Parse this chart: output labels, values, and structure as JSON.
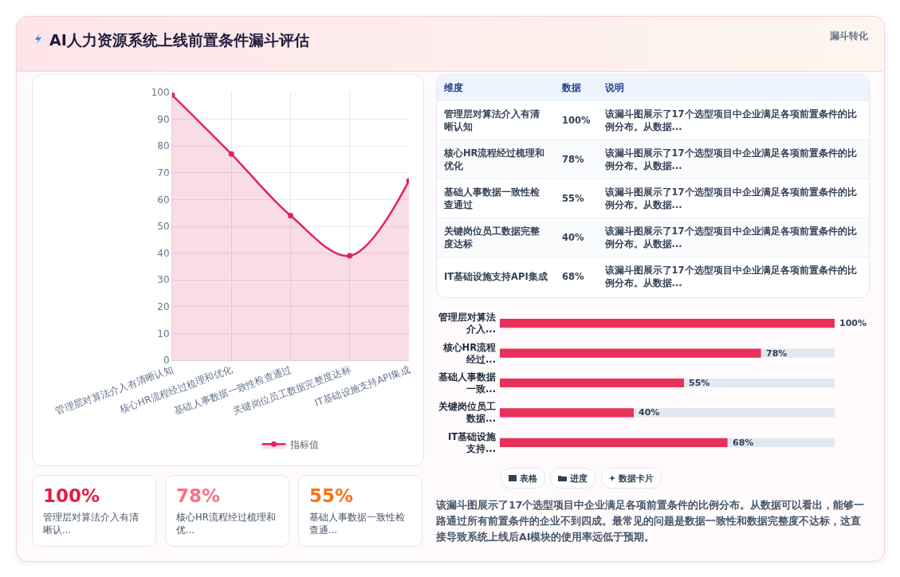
{
  "chart_data": [
    {
      "type": "area",
      "title": "AI人力资源系统上线前置条件漏斗评估",
      "annotations": [
        "漏斗转化"
      ],
      "categories": [
        "管理层对算法介入有清晰认知",
        "核心HR流程经过梳理和优化",
        "基础人事数据一致性检查通过",
        "关键岗位员工数据完整度达标",
        "IT基础设施支持API集成"
      ],
      "series": [
        {
          "name": "指标值",
          "color": "#e0245e",
          "values": [
            99,
            77,
            54,
            39,
            67
          ]
        }
      ],
      "ylim": [
        0,
        100
      ],
      "yticks": [
        0,
        10,
        20,
        30,
        40,
        50,
        60,
        70,
        80,
        90,
        100
      ],
      "grid": true,
      "legend": "bottom",
      "marker": "circle",
      "line_style": "solid"
    },
    {
      "type": "other",
      "annotations": [
        "维度",
        "数据",
        "说明",
        "管理层对算法介入有清晰认知",
        "100%",
        "该漏斗图展示了17个选型项目中企业满足各项前置条件的比例分布。从数据...",
        "核心HR流程经过梳理和优化",
        "78%",
        "该漏斗图展示了17个选型项目中企业满足各项前置条件的比例分布。从数据...",
        "基础人事数据一致性检查通过",
        "55%",
        "该漏斗图展示了17个选型项目中企业满足各项前置条件的比例分布。从数据...",
        "关键岗位员工数据完整度达标",
        "40%",
        "该漏斗图展示了17个选型项目中企业满足各项前置条件的比例分布。从数据...",
        "IT基础设施支持API集成",
        "68%",
        "该漏斗图展示了17个选型项目中企业满足各项前置条件的比例分布。从数据..."
      ]
    },
    {
      "type": "bar",
      "orientation": "horizontal",
      "categories": [
        "管理层对算法介入...",
        "核心HR流程经过...",
        "基础人事数据一致...",
        "关键岗位员工数据...",
        "IT基础设施支持..."
      ],
      "values": [
        100,
        78,
        55,
        40,
        68
      ],
      "value_labels": [
        "100%",
        "78%",
        "55%",
        "40%",
        "68%"
      ],
      "color": "#e8315a"
    },
    {
      "type": "other",
      "annotations": [
        "100%",
        "管理层对算法介入有清晰认...",
        "78%",
        "核心HR流程经过梳理和优...",
        "55%",
        "基础人事数据一致性检查通...",
        "表格",
        "进度",
        "数据卡片",
        "该漏斗图展示了17个选型项目中企业满足各项前置条件的比例分布。从数据可以看出，能够一路通过所有前置条件的企业不到四成。最常见的问题是数据一致性和数据完整度不达标，这直接导致系统上线后AI模块的使用率远低于预期。"
      ],
      "colors": [
        "#e11d48",
        "#fb7185",
        "#f97316"
      ]
    }
  ]
}
